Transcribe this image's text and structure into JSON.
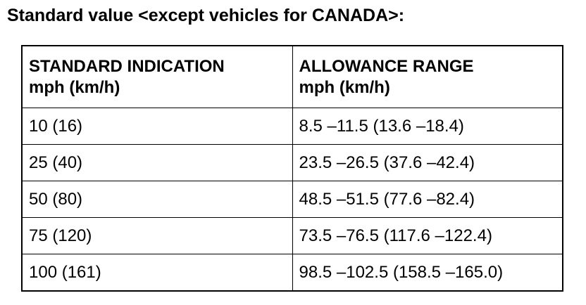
{
  "title": "Standard value <except vehicles for CANADA>:",
  "table": {
    "header": [
      [
        "STANDARD INDICATION",
        "mph (km/h)"
      ],
      [
        "ALLOWANCE RANGE",
        "mph (km/h)"
      ]
    ],
    "rows": [
      [
        "10 (16)",
        "8.5 –11.5 (13.6 –18.4)"
      ],
      [
        "25 (40)",
        "23.5 –26.5 (37.6 –42.4)"
      ],
      [
        "50 (80)",
        "48.5 –51.5 (77.6 –82.4)"
      ],
      [
        "75 (120)",
        "73.5 –76.5 (117.6 –122.4)"
      ],
      [
        "100 (161)",
        "98.5 –102.5 (158.5 –165.0)"
      ]
    ]
  }
}
